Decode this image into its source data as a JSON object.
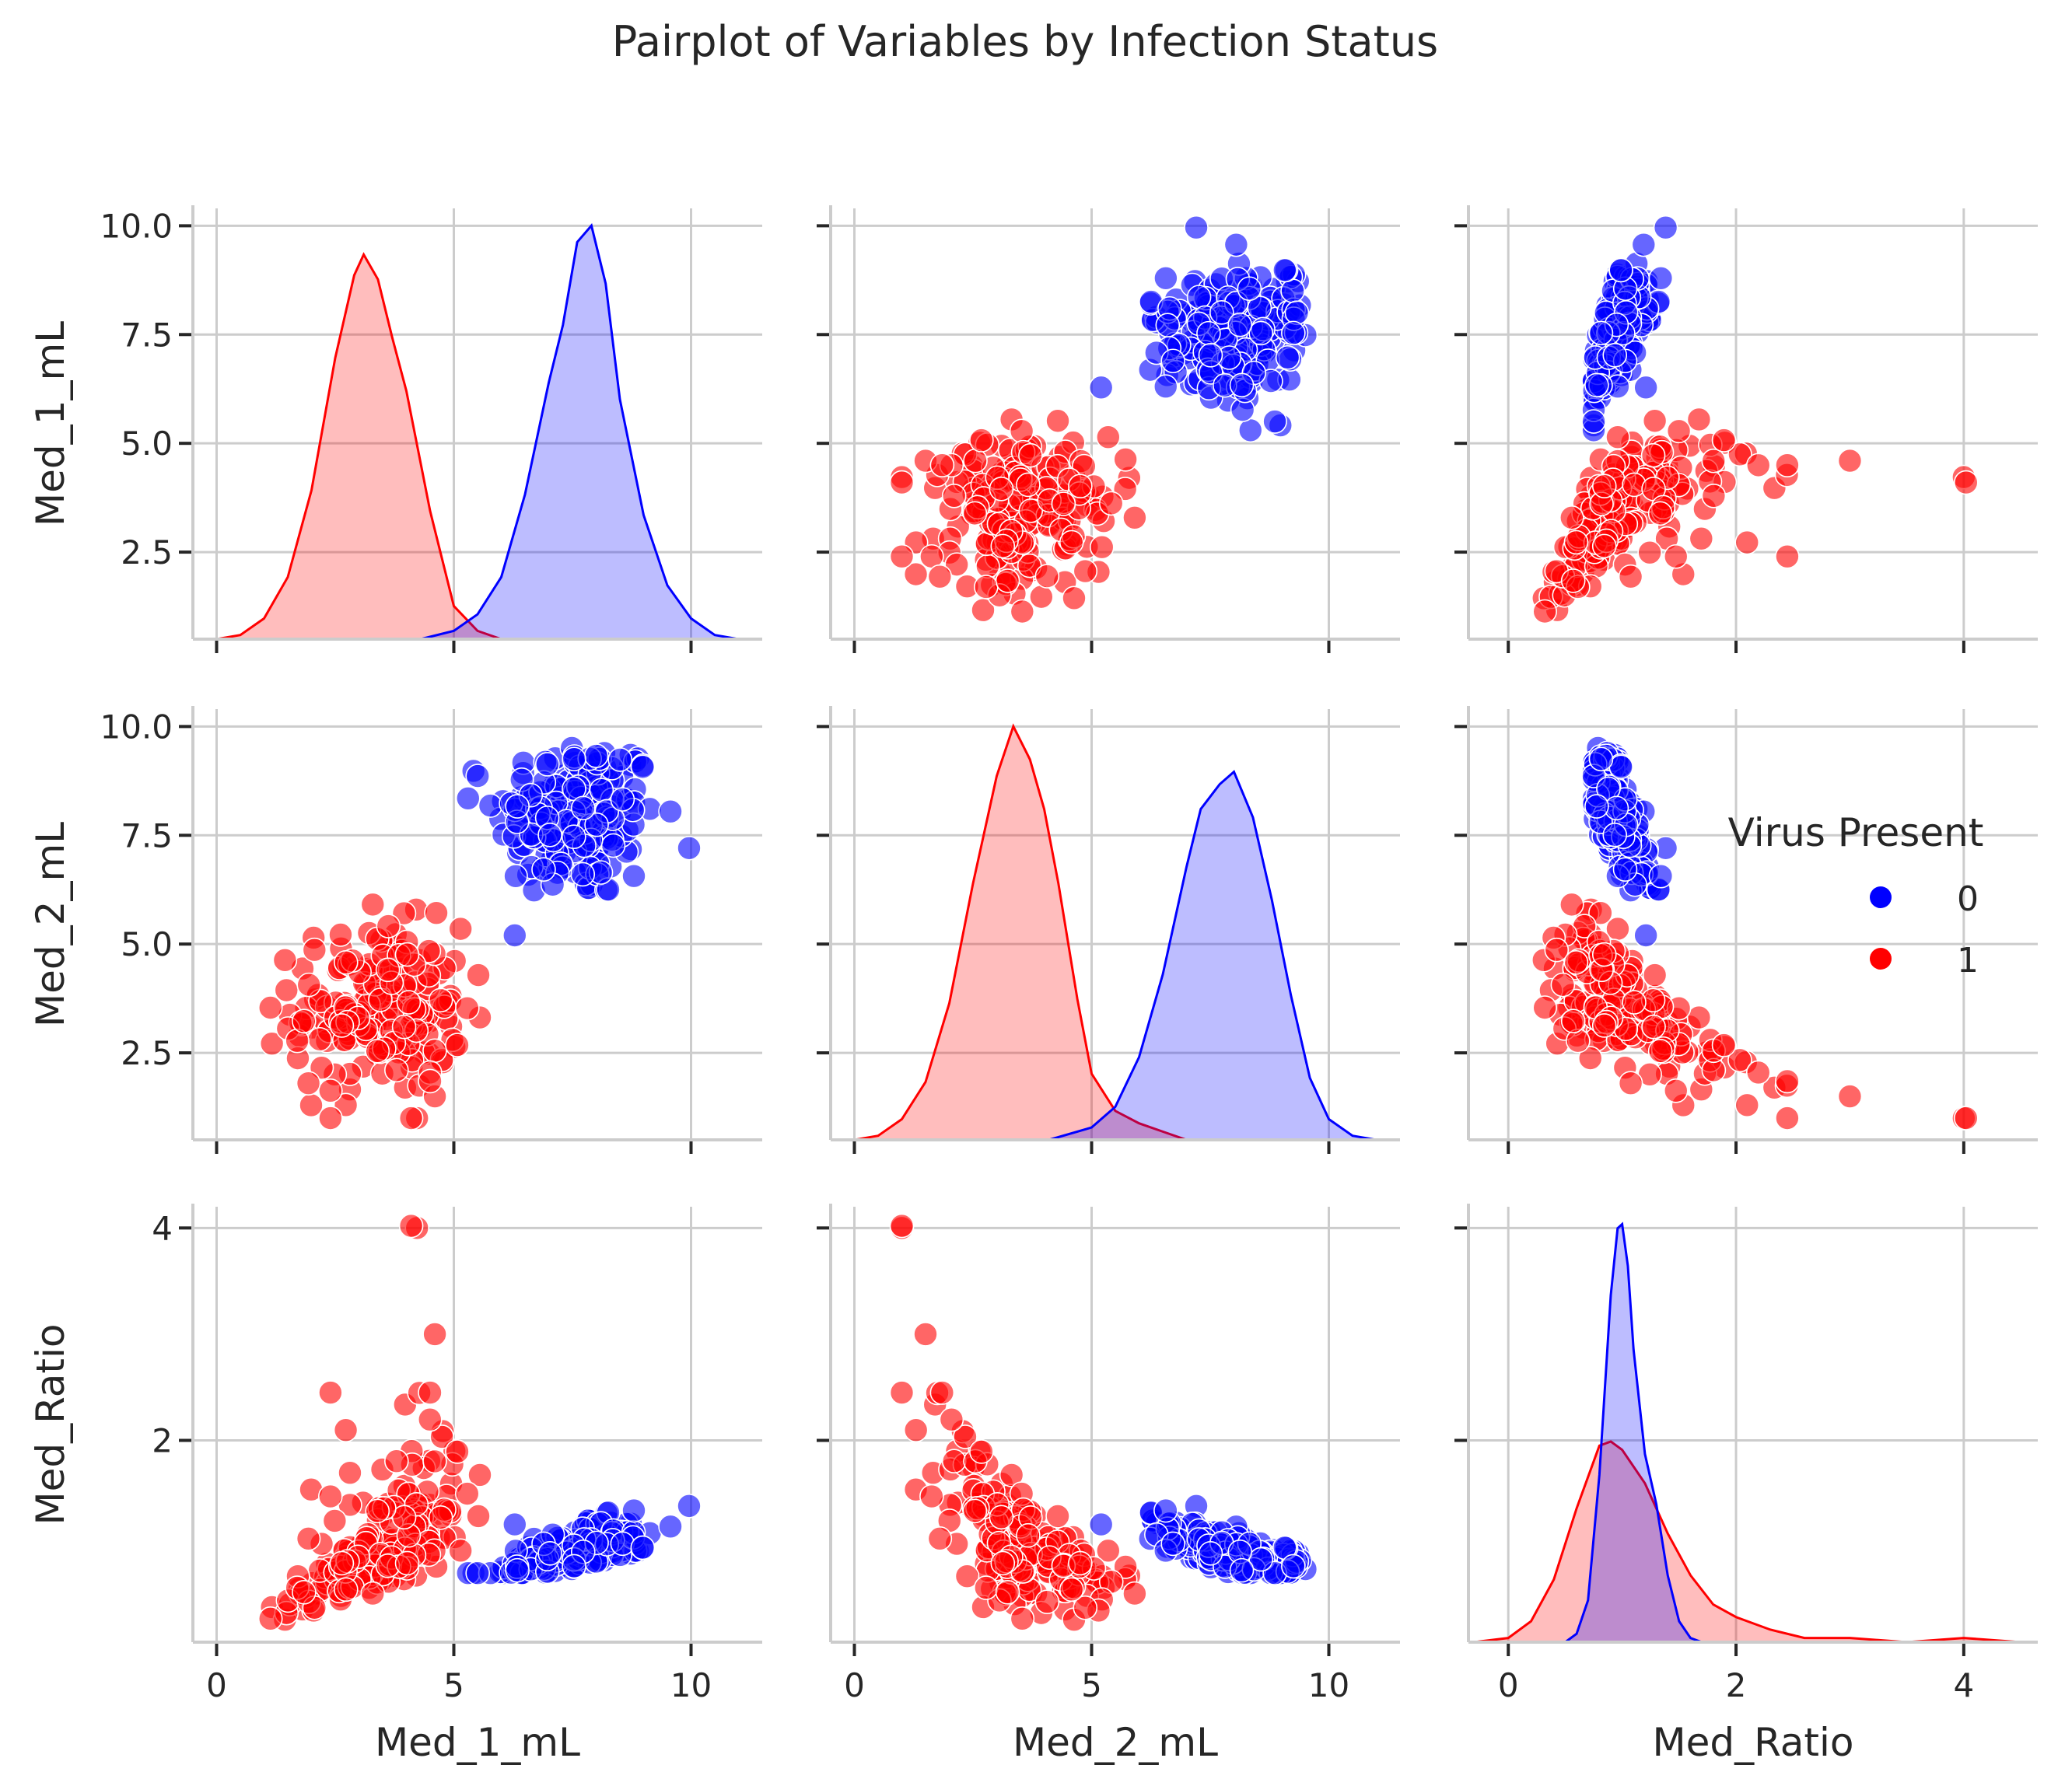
{
  "title": "Pairplot of Variables by Infection Status",
  "colors": {
    "0": "#0000ff",
    "1": "#ff0000",
    "grid": "#cccccc",
    "spine": "#cccccc",
    "text": "#262626"
  },
  "legend": {
    "title": "Virus Present",
    "entries": [
      "0",
      "1"
    ],
    "placement": "right-center"
  },
  "chart_data": {
    "type": "scatter",
    "grid": true,
    "variables": [
      {
        "name": "Med_1_mL",
        "range": [
          -0.5,
          11.5
        ],
        "ticks": [
          0,
          5,
          10
        ],
        "tick_labels": [
          "0",
          "5",
          "10"
        ],
        "row_ticks": [
          2.5,
          5.0,
          7.5,
          10.0
        ],
        "row_tick_labels": [
          "2.5",
          "5.0",
          "7.5",
          "10.0"
        ],
        "row_range": [
          0.5,
          10.4
        ]
      },
      {
        "name": "Med_2_mL",
        "range": [
          -0.5,
          11.5
        ],
        "ticks": [
          0,
          5,
          10
        ],
        "tick_labels": [
          "0",
          "5",
          "10"
        ],
        "row_ticks": [
          2.5,
          5.0,
          7.5,
          10.0
        ],
        "row_tick_labels": [
          "2.5",
          "5.0",
          "7.5",
          "10.0"
        ],
        "row_range": [
          0.5,
          10.4
        ]
      },
      {
        "name": "Med_Ratio",
        "range": [
          -0.35,
          4.65
        ],
        "ticks": [
          0,
          2,
          4
        ],
        "tick_labels": [
          "0",
          "2",
          "4"
        ],
        "row_ticks": [
          2,
          4
        ],
        "row_tick_labels": [
          "2",
          "4"
        ],
        "row_range": [
          0.1,
          4.2
        ]
      }
    ],
    "hue": "Virus Present",
    "groups": [
      {
        "name": "0",
        "color": "#0000ff",
        "med1_mean": 7.6,
        "med1_sd": 0.85,
        "med2_mean": 7.9,
        "med2_sd": 0.95,
        "med1_range": [
          5.3,
          10.0
        ],
        "med2_range": [
          5.2,
          10.0
        ],
        "ratio_range": [
          0.75,
          1.5
        ]
      },
      {
        "name": "1",
        "color": "#ff0000",
        "med1_mean": 3.4,
        "med1_sd": 0.9,
        "med2_mean": 3.5,
        "med2_sd": 0.95,
        "med1_range": [
          1.0,
          5.7
        ],
        "med2_range": [
          1.0,
          6.5
        ],
        "ratio_range": [
          0.3,
          4.0
        ]
      }
    ],
    "kde": [
      {
        "variable": "Med_1_mL",
        "group": "0",
        "x": [
          4.3,
          5.0,
          5.5,
          6.0,
          6.5,
          7.0,
          7.3,
          7.6,
          7.9,
          8.2,
          8.5,
          9.0,
          9.5,
          10.0,
          10.5,
          11.0
        ],
        "y": [
          0.0,
          0.02,
          0.06,
          0.15,
          0.35,
          0.62,
          0.76,
          0.96,
          1.0,
          0.86,
          0.58,
          0.3,
          0.13,
          0.05,
          0.01,
          0.0
        ]
      },
      {
        "variable": "Med_1_mL",
        "group": "1",
        "x": [
          0.0,
          0.5,
          1.0,
          1.5,
          2.0,
          2.5,
          2.9,
          3.1,
          3.4,
          3.7,
          4.0,
          4.5,
          5.0,
          5.5,
          6.0
        ],
        "y": [
          0.0,
          0.01,
          0.05,
          0.15,
          0.36,
          0.68,
          0.88,
          0.93,
          0.87,
          0.73,
          0.6,
          0.31,
          0.08,
          0.02,
          0.0
        ]
      },
      {
        "variable": "Med_2_mL",
        "group": "0",
        "x": [
          4.1,
          5.0,
          5.5,
          6.0,
          6.5,
          7.0,
          7.3,
          7.7,
          8.0,
          8.4,
          8.8,
          9.2,
          9.6,
          10.0,
          10.5,
          11.0
        ],
        "y": [
          0.0,
          0.03,
          0.08,
          0.2,
          0.4,
          0.66,
          0.8,
          0.86,
          0.89,
          0.78,
          0.58,
          0.35,
          0.15,
          0.05,
          0.01,
          0.0
        ]
      },
      {
        "variable": "Med_2_mL",
        "group": "1",
        "x": [
          0.0,
          0.5,
          1.0,
          1.5,
          2.0,
          2.5,
          3.0,
          3.35,
          3.7,
          4.0,
          4.3,
          4.7,
          5.0,
          5.5,
          6.0,
          6.5,
          7.0
        ],
        "y": [
          0.0,
          0.01,
          0.05,
          0.14,
          0.33,
          0.62,
          0.88,
          1.0,
          0.92,
          0.8,
          0.62,
          0.34,
          0.16,
          0.07,
          0.04,
          0.02,
          0.0
        ]
      },
      {
        "variable": "Med_Ratio",
        "group": "0",
        "x": [
          0.5,
          0.6,
          0.7,
          0.8,
          0.9,
          0.96,
          1.0,
          1.05,
          1.1,
          1.2,
          1.3,
          1.4,
          1.5,
          1.6,
          1.7
        ],
        "y": [
          0.0,
          0.02,
          0.1,
          0.4,
          0.83,
          0.99,
          1.0,
          0.9,
          0.7,
          0.45,
          0.33,
          0.16,
          0.05,
          0.01,
          0.0
        ]
      },
      {
        "variable": "Med_Ratio",
        "group": "1",
        "x": [
          -0.3,
          0.0,
          0.2,
          0.4,
          0.6,
          0.8,
          0.9,
          1.0,
          1.2,
          1.4,
          1.6,
          1.8,
          2.0,
          2.3,
          2.6,
          3.0,
          3.5,
          4.0,
          4.5
        ],
        "y": [
          0.0,
          0.01,
          0.05,
          0.15,
          0.32,
          0.47,
          0.48,
          0.46,
          0.38,
          0.26,
          0.16,
          0.09,
          0.06,
          0.03,
          0.01,
          0.01,
          0.0,
          0.01,
          0.0
        ]
      }
    ],
    "point_counts": {
      "0": 200,
      "1": 200
    },
    "notable_points": [
      {
        "group": "1",
        "Med_1_mL": 4.1,
        "Med_2_mL": 1.0,
        "Med_Ratio": 4.02
      },
      {
        "group": "1",
        "Med_1_mL": 4.6,
        "Med_2_mL": 1.5,
        "Med_Ratio": 3.0
      },
      {
        "group": "1",
        "Med_1_mL": 4.5,
        "Med_2_mL": 1.85,
        "Med_Ratio": 2.45
      },
      {
        "group": "1",
        "Med_1_mL": 2.4,
        "Med_2_mL": 1.0,
        "Med_Ratio": 2.45
      }
    ]
  }
}
